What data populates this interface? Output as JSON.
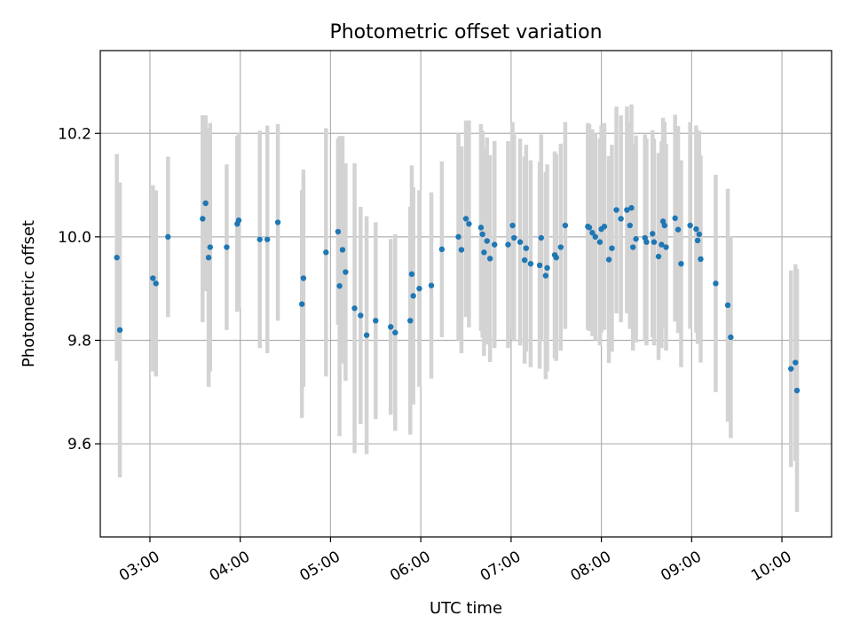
{
  "chart_data": {
    "type": "scatter",
    "title": "Photometric offset variation",
    "xlabel": "UTC time",
    "ylabel": "Photometric offset",
    "xlim": [
      "02:27",
      "10:33"
    ],
    "ylim": [
      9.42,
      10.36
    ],
    "xticks": [
      "03:00",
      "04:00",
      "05:00",
      "06:00",
      "07:00",
      "08:00",
      "09:00",
      "10:00"
    ],
    "yticks": [
      9.6,
      9.8,
      10.0,
      10.2
    ],
    "grid": true,
    "point_color": "#1f77b4",
    "errorbar_color": "#d3d3d3",
    "points": [
      {
        "x": "02:38",
        "y": 9.96,
        "err": 0.2
      },
      {
        "x": "02:40",
        "y": 9.82,
        "err": 0.285
      },
      {
        "x": "03:02",
        "y": 9.92,
        "err": 0.18
      },
      {
        "x": "03:04",
        "y": 9.91,
        "err": 0.18
      },
      {
        "x": "03:12",
        "y": 10.0,
        "err": 0.155
      },
      {
        "x": "03:35",
        "y": 10.035,
        "err": 0.2
      },
      {
        "x": "03:37",
        "y": 10.065,
        "err": 0.17
      },
      {
        "x": "03:39",
        "y": 9.96,
        "err": 0.25
      },
      {
        "x": "03:40",
        "y": 9.98,
        "err": 0.24
      },
      {
        "x": "03:51",
        "y": 9.98,
        "err": 0.16
      },
      {
        "x": "03:58",
        "y": 10.025,
        "err": 0.17
      },
      {
        "x": "03:59",
        "y": 10.032,
        "err": 0.17
      },
      {
        "x": "04:13",
        "y": 9.995,
        "err": 0.21
      },
      {
        "x": "04:18",
        "y": 9.995,
        "err": 0.22
      },
      {
        "x": "04:25",
        "y": 10.028,
        "err": 0.19
      },
      {
        "x": "04:41",
        "y": 9.87,
        "err": 0.22
      },
      {
        "x": "04:42",
        "y": 9.92,
        "err": 0.21
      },
      {
        "x": "04:57",
        "y": 9.97,
        "err": 0.24
      },
      {
        "x": "05:05",
        "y": 10.01,
        "err": 0.18
      },
      {
        "x": "05:06",
        "y": 9.905,
        "err": 0.29
      },
      {
        "x": "05:08",
        "y": 9.975,
        "err": 0.22
      },
      {
        "x": "05:10",
        "y": 9.932,
        "err": 0.21
      },
      {
        "x": "05:16",
        "y": 9.862,
        "err": 0.28
      },
      {
        "x": "05:20",
        "y": 9.848,
        "err": 0.21
      },
      {
        "x": "05:24",
        "y": 9.81,
        "err": 0.23
      },
      {
        "x": "05:30",
        "y": 9.838,
        "err": 0.19
      },
      {
        "x": "05:40",
        "y": 9.826,
        "err": 0.17
      },
      {
        "x": "05:43",
        "y": 9.815,
        "err": 0.19
      },
      {
        "x": "05:53",
        "y": 9.838,
        "err": 0.22
      },
      {
        "x": "05:54",
        "y": 9.928,
        "err": 0.21
      },
      {
        "x": "05:55",
        "y": 9.886,
        "err": 0.21
      },
      {
        "x": "05:59",
        "y": 9.9,
        "err": 0.19
      },
      {
        "x": "06:07",
        "y": 9.906,
        "err": 0.18
      },
      {
        "x": "06:14",
        "y": 9.976,
        "err": 0.17
      },
      {
        "x": "06:25",
        "y": 10.0,
        "err": 0.2
      },
      {
        "x": "06:27",
        "y": 9.975,
        "err": 0.2
      },
      {
        "x": "06:30",
        "y": 10.035,
        "err": 0.19
      },
      {
        "x": "06:32",
        "y": 10.025,
        "err": 0.2
      },
      {
        "x": "06:40",
        "y": 10.018,
        "err": 0.2
      },
      {
        "x": "06:41",
        "y": 10.005,
        "err": 0.2
      },
      {
        "x": "06:42",
        "y": 9.97,
        "err": 0.2
      },
      {
        "x": "06:44",
        "y": 9.992,
        "err": 0.2
      },
      {
        "x": "06:46",
        "y": 9.958,
        "err": 0.2
      },
      {
        "x": "06:49",
        "y": 9.985,
        "err": 0.2
      },
      {
        "x": "06:58",
        "y": 9.985,
        "err": 0.2
      },
      {
        "x": "07:01",
        "y": 10.022,
        "err": 0.2
      },
      {
        "x": "07:02",
        "y": 9.998,
        "err": 0.2
      },
      {
        "x": "07:06",
        "y": 9.99,
        "err": 0.2
      },
      {
        "x": "07:09",
        "y": 9.955,
        "err": 0.2
      },
      {
        "x": "07:10",
        "y": 9.978,
        "err": 0.2
      },
      {
        "x": "07:13",
        "y": 9.948,
        "err": 0.2
      },
      {
        "x": "07:19",
        "y": 9.945,
        "err": 0.2
      },
      {
        "x": "07:20",
        "y": 9.998,
        "err": 0.2
      },
      {
        "x": "07:23",
        "y": 9.925,
        "err": 0.2
      },
      {
        "x": "07:24",
        "y": 9.94,
        "err": 0.2
      },
      {
        "x": "07:29",
        "y": 9.965,
        "err": 0.2
      },
      {
        "x": "07:30",
        "y": 9.96,
        "err": 0.2
      },
      {
        "x": "07:33",
        "y": 9.98,
        "err": 0.2
      },
      {
        "x": "07:36",
        "y": 10.022,
        "err": 0.2
      },
      {
        "x": "07:51",
        "y": 10.02,
        "err": 0.2
      },
      {
        "x": "07:52",
        "y": 10.018,
        "err": 0.2
      },
      {
        "x": "07:54",
        "y": 10.008,
        "err": 0.2
      },
      {
        "x": "07:56",
        "y": 10.0,
        "err": 0.2
      },
      {
        "x": "07:59",
        "y": 9.99,
        "err": 0.2
      },
      {
        "x": "08:00",
        "y": 10.015,
        "err": 0.2
      },
      {
        "x": "08:02",
        "y": 10.02,
        "err": 0.2
      },
      {
        "x": "08:05",
        "y": 9.956,
        "err": 0.2
      },
      {
        "x": "08:07",
        "y": 9.978,
        "err": 0.2
      },
      {
        "x": "08:10",
        "y": 10.052,
        "err": 0.2
      },
      {
        "x": "08:13",
        "y": 10.035,
        "err": 0.2
      },
      {
        "x": "08:17",
        "y": 10.052,
        "err": 0.2
      },
      {
        "x": "08:19",
        "y": 10.022,
        "err": 0.2
      },
      {
        "x": "08:20",
        "y": 10.056,
        "err": 0.2
      },
      {
        "x": "08:21",
        "y": 9.98,
        "err": 0.2
      },
      {
        "x": "08:23",
        "y": 9.996,
        "err": 0.2
      },
      {
        "x": "08:29",
        "y": 9.998,
        "err": 0.2
      },
      {
        "x": "08:30",
        "y": 9.99,
        "err": 0.2
      },
      {
        "x": "08:34",
        "y": 10.006,
        "err": 0.2
      },
      {
        "x": "08:35",
        "y": 9.99,
        "err": 0.2
      },
      {
        "x": "08:38",
        "y": 9.962,
        "err": 0.2
      },
      {
        "x": "08:40",
        "y": 9.985,
        "err": 0.2
      },
      {
        "x": "08:41",
        "y": 10.03,
        "err": 0.2
      },
      {
        "x": "08:42",
        "y": 10.022,
        "err": 0.2
      },
      {
        "x": "08:43",
        "y": 9.98,
        "err": 0.2
      },
      {
        "x": "08:49",
        "y": 10.036,
        "err": 0.2
      },
      {
        "x": "08:51",
        "y": 10.014,
        "err": 0.2
      },
      {
        "x": "08:53",
        "y": 9.948,
        "err": 0.2
      },
      {
        "x": "08:59",
        "y": 10.022,
        "err": 0.2
      },
      {
        "x": "09:03",
        "y": 10.015,
        "err": 0.2
      },
      {
        "x": "09:04",
        "y": 9.993,
        "err": 0.2
      },
      {
        "x": "09:05",
        "y": 10.005,
        "err": 0.2
      },
      {
        "x": "09:06",
        "y": 9.957,
        "err": 0.2
      },
      {
        "x": "09:16",
        "y": 9.91,
        "err": 0.21
      },
      {
        "x": "09:24",
        "y": 9.868,
        "err": 0.225
      },
      {
        "x": "09:26",
        "y": 9.806,
        "err": 0.195
      },
      {
        "x": "10:06",
        "y": 9.745,
        "err": 0.19
      },
      {
        "x": "10:09",
        "y": 9.757,
        "err": 0.19
      },
      {
        "x": "10:10",
        "y": 9.703,
        "err": 0.235
      }
    ]
  }
}
